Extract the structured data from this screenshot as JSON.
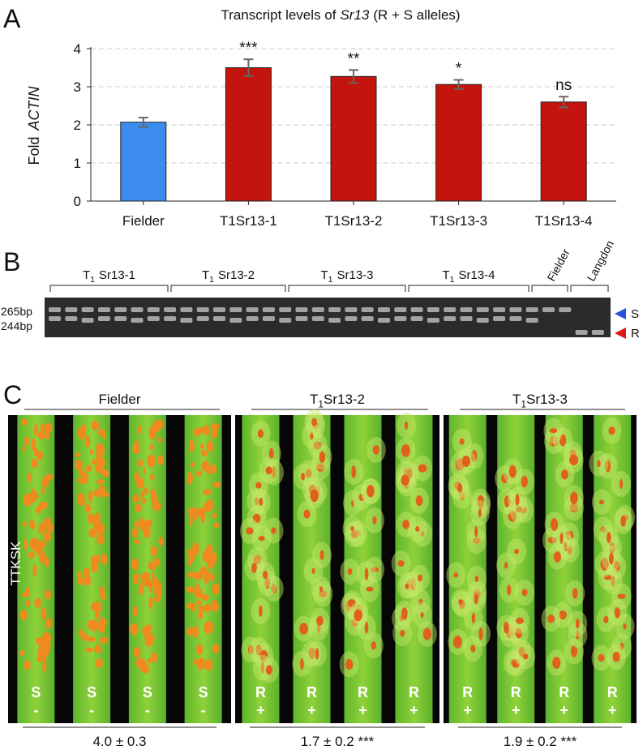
{
  "chart_data": {
    "type": "bar",
    "panel_label": "A",
    "title": "Transcript levels of",
    "title_gene": "Sr13",
    "title_suffix": "(R + S alleles)",
    "ylabel": "Fold",
    "ylabel_gene": "ACTIN",
    "categories": [
      "Fielder",
      "T1Sr13-1",
      "T1Sr13-2",
      "T1Sr13-3",
      "T1Sr13-4"
    ],
    "values": [
      2.07,
      3.5,
      3.27,
      3.06,
      2.6
    ],
    "errors": [
      0.12,
      0.22,
      0.17,
      0.12,
      0.14
    ],
    "colors": [
      "#3b8ced",
      "#c3150d",
      "#c3150d",
      "#c3150d",
      "#c3150d"
    ],
    "annotations": [
      null,
      "***",
      "**",
      "*",
      "ns"
    ],
    "ylim": [
      0,
      4
    ],
    "yticks": [
      0,
      1,
      2,
      3,
      4
    ],
    "grid": true
  },
  "gel": {
    "panel_label": "B",
    "groups": [
      {
        "prefix": "T",
        "sub": "1",
        "name": "Sr13-1"
      },
      {
        "prefix": "T",
        "sub": "1",
        "name": "Sr13-2"
      },
      {
        "prefix": "T",
        "sub": "1",
        "name": "Sr13-3"
      },
      {
        "prefix": "T",
        "sub": "1",
        "name": "Sr13-4"
      },
      {
        "name": "Fielder"
      },
      {
        "name": "Langdon"
      }
    ],
    "band_labels": [
      "265bp",
      "244bp"
    ],
    "alleles": [
      "S",
      "R"
    ]
  },
  "leaves": {
    "panel_label": "C",
    "race": "TTKSK",
    "panels": [
      {
        "name": "Fielder",
        "reactions": [
          "S",
          "S",
          "S",
          "S"
        ],
        "signs": [
          "-",
          "-",
          "-",
          "-"
        ],
        "score": "4.0 ± 0.3"
      },
      {
        "prefix": "T",
        "sub": "1",
        "name": "Sr13-2",
        "reactions": [
          "R",
          "R",
          "R",
          "R"
        ],
        "signs": [
          "+",
          "+",
          "+",
          "+"
        ],
        "score": "1.7 ± 0.2 ***"
      },
      {
        "prefix": "T",
        "sub": "1",
        "name": "Sr13-3",
        "reactions": [
          "R",
          "R",
          "R",
          "R"
        ],
        "signs": [
          "+",
          "+",
          "+",
          "+"
        ],
        "score": "1.9 ± 0.2 ***"
      }
    ]
  }
}
